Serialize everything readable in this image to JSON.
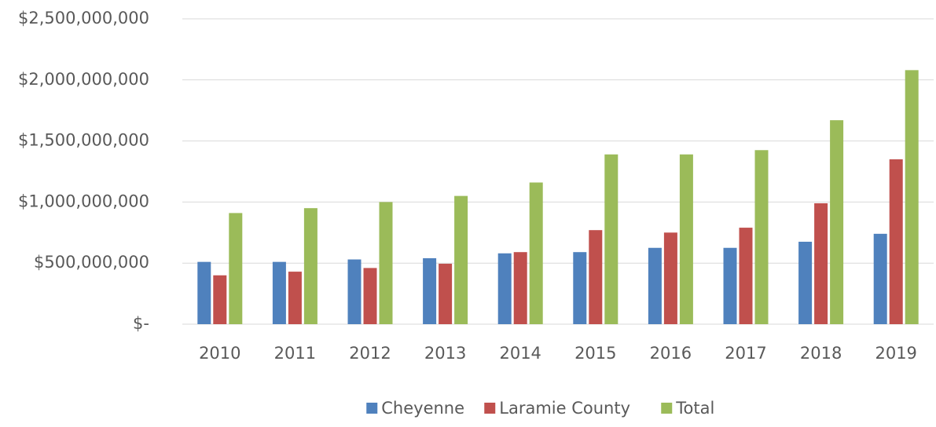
{
  "chart_data": {
    "type": "bar",
    "categories": [
      "2010",
      "2011",
      "2012",
      "2013",
      "2014",
      "2015",
      "2016",
      "2017",
      "2018",
      "2019"
    ],
    "series": [
      {
        "name": "Cheyenne",
        "color": "#4f81bd",
        "values": [
          510000000,
          510000000,
          530000000,
          540000000,
          580000000,
          590000000,
          625000000,
          625000000,
          675000000,
          740000000
        ]
      },
      {
        "name": "Laramie County",
        "color": "#c0504d",
        "values": [
          400000000,
          430000000,
          460000000,
          495000000,
          590000000,
          770000000,
          750000000,
          790000000,
          990000000,
          1350000000
        ]
      },
      {
        "name": "Total",
        "color": "#9bbb59",
        "values": [
          910000000,
          950000000,
          1000000000,
          1050000000,
          1160000000,
          1390000000,
          1390000000,
          1425000000,
          1670000000,
          2080000000
        ]
      }
    ],
    "ylim": [
      0,
      2500000000
    ],
    "yticks": [
      {
        "value": 0,
        "label": "$-"
      },
      {
        "value": 500000000,
        "label": "$500,000,000"
      },
      {
        "value": 1000000000,
        "label": "$1,000,000,000"
      },
      {
        "value": 1500000000,
        "label": "$1,500,000,000"
      },
      {
        "value": 2000000000,
        "label": "$2,000,000,000"
      },
      {
        "value": 2500000000,
        "label": "$2,500,000,000"
      }
    ],
    "grid": true,
    "legend": "bottom"
  }
}
